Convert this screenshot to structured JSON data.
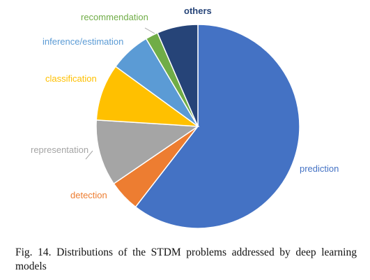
{
  "chart_data": {
    "type": "pie",
    "slices": [
      {
        "label": "prediction",
        "value": 60.5,
        "color": "#4472C4"
      },
      {
        "label": "detection",
        "value": 5,
        "color": "#ED7D31"
      },
      {
        "label": "representation",
        "value": 10.5,
        "color": "#A5A5A5"
      },
      {
        "label": "classification",
        "value": 9,
        "color": "#FFC000"
      },
      {
        "label": "inference/estimation",
        "value": 6.5,
        "color": "#5B9BD5"
      },
      {
        "label": "recommendation",
        "value": 2,
        "color": "#70AD47"
      },
      {
        "label": "others",
        "value": 6.5,
        "color": "#264478"
      }
    ],
    "start_angle": "12 o'clock",
    "direction": "clockwise",
    "legend": "none (category labels beside slices)"
  },
  "caption": "Fig. 14.  Distributions of the STDM problems addressed by deep learning models"
}
